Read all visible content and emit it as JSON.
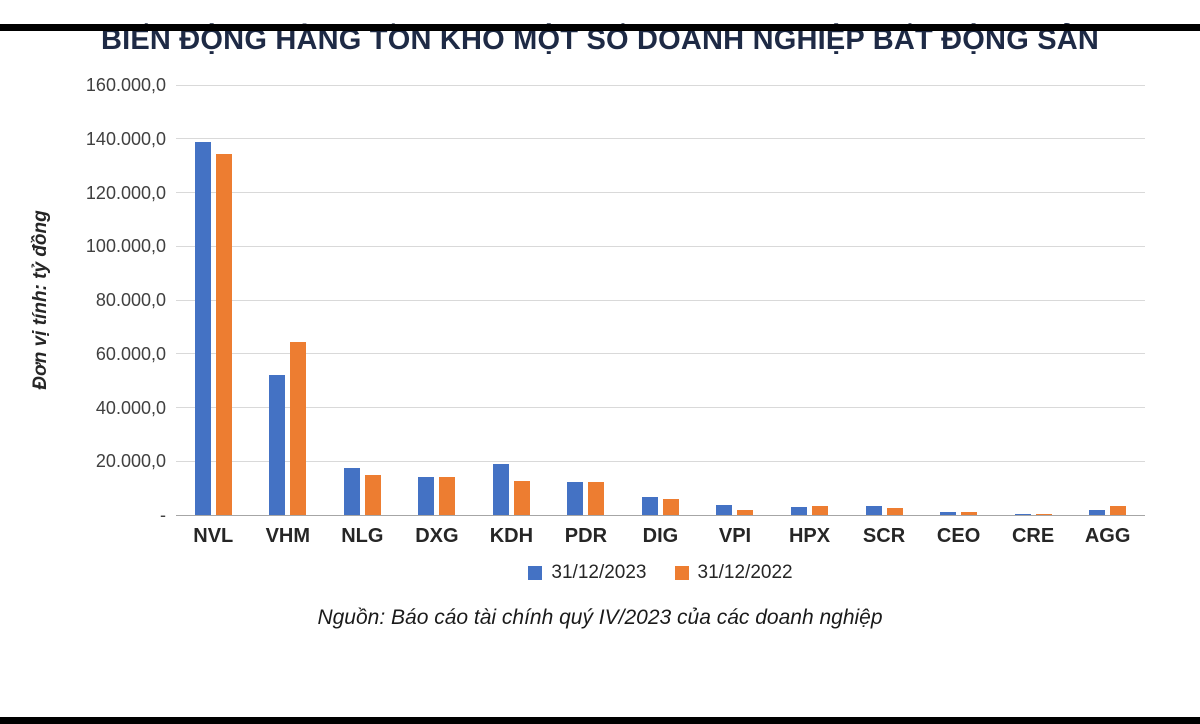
{
  "title": "BIẾN ĐỘNG HÀNG TỒN KHO MỘT SỐ DOANH NGHIỆP BẤT ĐỘNG SẢN",
  "source_note": "Nguồn: Báo cáo tài chính quý IV/2023 của các doanh nghiệp",
  "chart_data": {
    "type": "bar",
    "title": "BIẾN ĐỘNG HÀNG TỒN KHO MỘT SỐ DOANH NGHIỆP BẤT ĐỘNG SẢN",
    "ylabel": "Đơn vị tính: tỷ đồng",
    "xlabel": "",
    "ylim": [
      0,
      160000
    ],
    "ytick_step": 20000,
    "ytick_labels": [
      "-",
      "20.000,0",
      "40.000,0",
      "60.000,0",
      "80.000,0",
      "100.000,0",
      "120.000,0",
      "140.000,0",
      "160.000,0"
    ],
    "grid": true,
    "legend_position": "bottom",
    "categories": [
      "NVL",
      "VHM",
      "NLG",
      "DXG",
      "KDH",
      "PDR",
      "DIG",
      "VPI",
      "HPX",
      "SCR",
      "CEO",
      "CRE",
      "AGG"
    ],
    "series": [
      {
        "name": "31/12/2023",
        "color": "#4472C4",
        "values": [
          138900,
          52200,
          17400,
          14100,
          18800,
          12200,
          6600,
          3600,
          2900,
          3500,
          1300,
          300,
          1700
        ]
      },
      {
        "name": "31/12/2022",
        "color": "#ED7D31",
        "values": [
          134500,
          64400,
          14800,
          14200,
          12600,
          12300,
          5900,
          1800,
          3400,
          2700,
          1100,
          300,
          3200
        ]
      }
    ]
  }
}
